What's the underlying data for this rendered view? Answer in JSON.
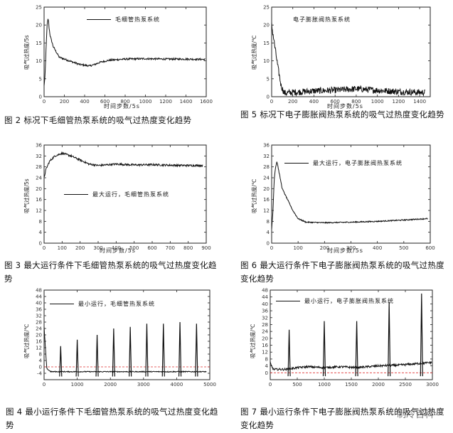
{
  "charts": [
    {
      "type": "line",
      "legend": "毛细管热泵系统",
      "xlabel": "时间步数/5s",
      "ylabel": "吸气过热度/5s",
      "caption": "图 2 标况下毛细管热泵系统的吸气过热度变化趋势",
      "xlim": [
        0,
        1600
      ],
      "ylim": [
        0,
        25
      ],
      "xticks": [
        0,
        200,
        400,
        600,
        800,
        1000,
        1200,
        1400,
        1600
      ],
      "yticks": [
        0,
        5,
        10,
        15,
        20,
        25
      ],
      "ref_line": null,
      "anchors": [
        [
          0,
          3
        ],
        [
          10,
          6
        ],
        [
          20,
          14
        ],
        [
          30,
          20
        ],
        [
          40,
          22
        ],
        [
          50,
          19
        ],
        [
          60,
          17
        ],
        [
          90,
          14
        ],
        [
          150,
          11
        ],
        [
          250,
          10
        ],
        [
          350,
          9
        ],
        [
          450,
          8.6
        ],
        [
          500,
          9
        ],
        [
          550,
          9.6
        ],
        [
          650,
          10.2
        ],
        [
          800,
          10.5
        ],
        [
          1000,
          10.6
        ],
        [
          1200,
          10.5
        ],
        [
          1400,
          10.5
        ],
        [
          1590,
          10.4
        ]
      ],
      "noise": 0.25,
      "spikes": []
    },
    {
      "type": "line",
      "legend": "电子膨胀阀热泵系统",
      "xlabel": "时间步数/5s",
      "ylabel": "吸气过热度/℃",
      "caption": "图 5 标况下电子膨胀阀热泵系统的吸气过热度变化趋势",
      "xlim": [
        0,
        1500
      ],
      "ylim": [
        0,
        25
      ],
      "xticks": [
        0,
        200,
        400,
        600,
        800,
        1000,
        1200,
        1400
      ],
      "yticks": [
        0,
        5,
        10,
        15,
        20,
        25
      ],
      "ref_line": null,
      "anchors": [
        [
          0,
          20
        ],
        [
          10,
          18
        ],
        [
          30,
          14
        ],
        [
          60,
          8
        ],
        [
          90,
          3
        ],
        [
          120,
          1
        ],
        [
          200,
          1.2
        ],
        [
          400,
          1.6
        ],
        [
          600,
          1.8
        ],
        [
          800,
          2.2
        ],
        [
          1000,
          1.8
        ],
        [
          1200,
          1.4
        ],
        [
          1400,
          1.2
        ],
        [
          1450,
          1.2
        ]
      ],
      "noise": 0.9,
      "spikes": []
    },
    {
      "type": "line",
      "legend": "最大运行，毛细管热泵系统",
      "xlabel": "时间步数/5s",
      "ylabel": "吸气过热度/5s",
      "caption": "图 3 最大运行条件下毛细管热泵系统的吸气过热度变化趋势",
      "xlim": [
        0,
        900
      ],
      "ylim": [
        0,
        36
      ],
      "xticks": [
        0,
        100,
        200,
        300,
        400,
        500,
        600,
        700,
        800,
        900
      ],
      "yticks": [
        0,
        4,
        8,
        12,
        16,
        20,
        24,
        28,
        32,
        36
      ],
      "ref_line": null,
      "anchors": [
        [
          0,
          24
        ],
        [
          10,
          27
        ],
        [
          30,
          30
        ],
        [
          60,
          32
        ],
        [
          100,
          33
        ],
        [
          150,
          32
        ],
        [
          200,
          30.5
        ],
        [
          250,
          29
        ],
        [
          300,
          28.5
        ],
        [
          400,
          29
        ],
        [
          500,
          28.7
        ],
        [
          600,
          28.8
        ],
        [
          700,
          28.6
        ],
        [
          800,
          28.5
        ],
        [
          880,
          28.5
        ]
      ],
      "noise": 0.35,
      "spikes": []
    },
    {
      "type": "line",
      "legend": "最大运行，电子膨胀阀热泵系统",
      "xlabel": "时间步数/5s",
      "ylabel": "吸气过热度/℃",
      "caption": "图 6 最大运行条件下电子膨胀阀热泵系统的吸气过热度变化趋势",
      "xlim": [
        0,
        600
      ],
      "ylim": [
        0,
        36
      ],
      "xticks": [
        0,
        100,
        200,
        300,
        400,
        500,
        600
      ],
      "yticks": [
        0,
        4,
        8,
        12,
        16,
        20,
        24,
        28,
        32,
        36
      ],
      "ref_line": null,
      "anchors": [
        [
          0,
          5
        ],
        [
          5,
          12
        ],
        [
          10,
          24
        ],
        [
          15,
          28
        ],
        [
          20,
          30
        ],
        [
          30,
          25
        ],
        [
          40,
          20
        ],
        [
          60,
          16
        ],
        [
          80,
          12
        ],
        [
          100,
          9
        ],
        [
          130,
          7.7
        ],
        [
          200,
          7.5
        ],
        [
          300,
          7.7
        ],
        [
          400,
          8.0
        ],
        [
          500,
          8.5
        ],
        [
          590,
          9.0
        ]
      ],
      "noise": 0.2,
      "spikes": []
    },
    {
      "type": "line",
      "legend": "最小运行，毛细管热泵系统",
      "xlabel": "",
      "ylabel": "吸气过热度/℃",
      "caption": "图 4 最小运行条件下毛细管热泵系统的吸气过热度变化趋势",
      "xlim": [
        0,
        5000
      ],
      "ylim": [
        -8,
        48
      ],
      "xticks": [
        0,
        1000,
        2000,
        3000,
        4000,
        5000
      ],
      "yticks": [
        -4,
        0,
        4,
        8,
        12,
        16,
        20,
        24,
        28,
        32,
        36,
        40,
        44,
        48
      ],
      "ref_line": 0,
      "anchors": [
        [
          0,
          25
        ],
        [
          30,
          15
        ],
        [
          80,
          -1
        ],
        [
          200,
          -3
        ],
        [
          1000,
          -3
        ],
        [
          2000,
          -3
        ],
        [
          3000,
          -3
        ],
        [
          4000,
          -3
        ],
        [
          4900,
          -3
        ]
      ],
      "noise": 0.3,
      "spikes": [
        [
          500,
          -6,
          13
        ],
        [
          1000,
          -6,
          17
        ],
        [
          1600,
          -6,
          20
        ],
        [
          2100,
          -6,
          24
        ],
        [
          2600,
          -6,
          25
        ],
        [
          3100,
          -6,
          27
        ],
        [
          3600,
          -6,
          27
        ],
        [
          4100,
          -6,
          28
        ],
        [
          4600,
          -6,
          27
        ]
      ]
    },
    {
      "type": "line",
      "legend": "最小运行，电子膨胀阀热泵系统",
      "xlabel": "",
      "ylabel": "吸气过热度/℃",
      "caption": "图 7 最小运行条件下电子膨胀阀热泵系统的吸气过热度变化趋势",
      "xlim": [
        0,
        3000
      ],
      "ylim": [
        -4,
        48
      ],
      "xticks": [
        0,
        500,
        1000,
        1500,
        2000,
        2500,
        3000
      ],
      "yticks": [
        0,
        4,
        8,
        12,
        16,
        20,
        24,
        28,
        32,
        36,
        40,
        44,
        48
      ],
      "ref_line": 0,
      "anchors": [
        [
          0,
          6
        ],
        [
          20,
          4
        ],
        [
          60,
          2
        ],
        [
          300,
          2
        ],
        [
          500,
          3
        ],
        [
          700,
          3.5
        ],
        [
          1000,
          3
        ],
        [
          1300,
          3.5
        ],
        [
          1600,
          3
        ],
        [
          2000,
          4
        ],
        [
          2400,
          4.5
        ],
        [
          2800,
          5.5
        ],
        [
          2990,
          6
        ]
      ],
      "noise": 0.6,
      "spikes": [
        [
          350,
          -2,
          25
        ],
        [
          1000,
          -2,
          30
        ],
        [
          1600,
          -2,
          30
        ],
        [
          2200,
          -2,
          41
        ],
        [
          2800,
          -2,
          46
        ]
      ]
    }
  ],
  "watermark": "制冷百科"
}
